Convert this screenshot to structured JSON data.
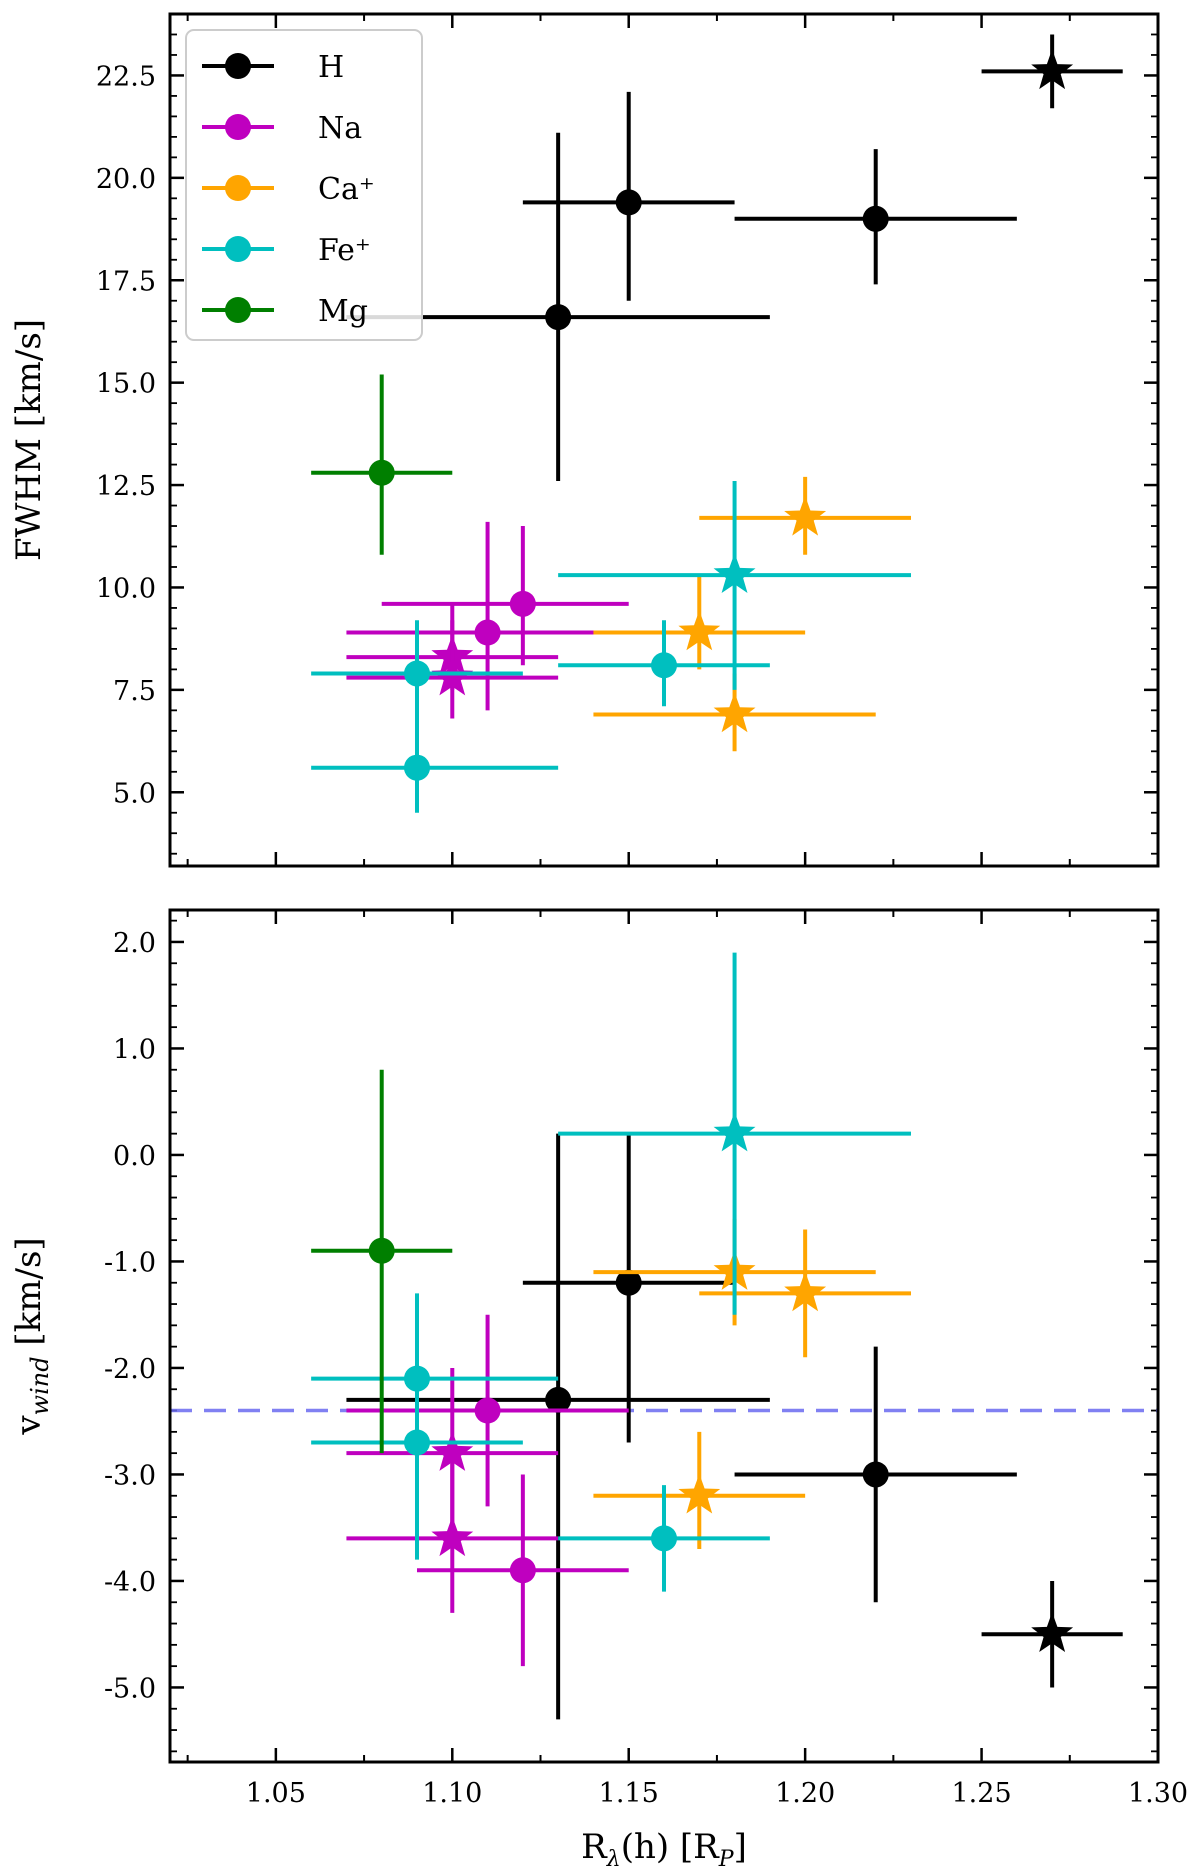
{
  "chart_data": {
    "type": "scatter",
    "xlabel": "R_λ(h) [R_P]",
    "x_ticks": [
      "1.05",
      "1.10",
      "1.15",
      "1.20",
      "1.25",
      "1.30"
    ],
    "x_tick_values": [
      1.05,
      1.1,
      1.15,
      1.2,
      1.25,
      1.3
    ],
    "xlim": [
      1.02,
      1.3
    ],
    "legend": {
      "placement": "top-left",
      "entries": [
        {
          "label": "H",
          "color": "#000000"
        },
        {
          "label": "Na",
          "color": "#bf00bf"
        },
        {
          "label": "Ca⁺",
          "color": "#ffa500"
        },
        {
          "label": "Fe⁺",
          "color": "#00bfbf"
        },
        {
          "label": "Mg",
          "color": "#007f00"
        }
      ]
    },
    "panels": [
      {
        "ylabel": "FWHM [km/s]",
        "ylim": [
          3.2,
          24.0
        ],
        "y_ticks": [
          "5.0",
          "7.5",
          "10.0",
          "12.5",
          "15.0",
          "17.5",
          "20.0",
          "22.5"
        ],
        "y_tick_values": [
          5.0,
          7.5,
          10.0,
          12.5,
          15.0,
          17.5,
          20.0,
          22.5
        ],
        "reference_line": null,
        "points": [
          {
            "species": "H",
            "marker": "circle",
            "x": 1.13,
            "xerr": [
              0.06,
              0.06
            ],
            "y": 16.6,
            "yerr": [
              4.0,
              4.5
            ]
          },
          {
            "species": "H",
            "marker": "circle",
            "x": 1.15,
            "xerr": [
              0.03,
              0.03
            ],
            "y": 19.4,
            "yerr": [
              2.4,
              2.7
            ]
          },
          {
            "species": "H",
            "marker": "circle",
            "x": 1.22,
            "xerr": [
              0.04,
              0.04
            ],
            "y": 19.0,
            "yerr": [
              1.6,
              1.7
            ]
          },
          {
            "species": "H",
            "marker": "star",
            "x": 1.27,
            "xerr": [
              0.02,
              0.02
            ],
            "y": 22.6,
            "yerr": [
              0.9,
              0.9
            ]
          },
          {
            "species": "Na",
            "marker": "circle",
            "x": 1.11,
            "xerr": [
              0.04,
              0.04
            ],
            "y": 8.9,
            "yerr": [
              1.9,
              2.7
            ]
          },
          {
            "species": "Na",
            "marker": "circle",
            "x": 1.12,
            "xerr": [
              0.04,
              0.03
            ],
            "y": 9.6,
            "yerr": [
              1.5,
              1.9
            ]
          },
          {
            "species": "Na",
            "marker": "star",
            "x": 1.1,
            "xerr": [
              0.03,
              0.03
            ],
            "y": 8.3,
            "yerr": [
              0.8,
              1.3
            ]
          },
          {
            "species": "Na",
            "marker": "star",
            "x": 1.1,
            "xerr": [
              0.03,
              0.03
            ],
            "y": 7.8,
            "yerr": [
              1.0,
              1.4
            ]
          },
          {
            "species": "Ca⁺",
            "marker": "star",
            "x": 1.17,
            "xerr": [
              0.03,
              0.03
            ],
            "y": 8.9,
            "yerr": [
              0.9,
              1.4
            ]
          },
          {
            "species": "Ca⁺",
            "marker": "star",
            "x": 1.18,
            "xerr": [
              0.04,
              0.04
            ],
            "y": 6.9,
            "yerr": [
              0.9,
              1.0
            ]
          },
          {
            "species": "Ca⁺",
            "marker": "star",
            "x": 1.2,
            "xerr": [
              0.03,
              0.03
            ],
            "y": 11.7,
            "yerr": [
              0.9,
              1.0
            ]
          },
          {
            "species": "Fe⁺",
            "marker": "circle",
            "x": 1.09,
            "xerr": [
              0.03,
              0.03
            ],
            "y": 7.9,
            "yerr": [
              1.3,
              1.3
            ]
          },
          {
            "species": "Fe⁺",
            "marker": "circle",
            "x": 1.09,
            "xerr": [
              0.03,
              0.04
            ],
            "y": 5.6,
            "yerr": [
              1.1,
              1.2
            ]
          },
          {
            "species": "Fe⁺",
            "marker": "circle",
            "x": 1.16,
            "xerr": [
              0.03,
              0.03
            ],
            "y": 8.1,
            "yerr": [
              1.0,
              1.1
            ]
          },
          {
            "species": "Fe⁺",
            "marker": "star",
            "x": 1.18,
            "xerr": [
              0.05,
              0.05
            ],
            "y": 10.3,
            "yerr": [
              2.8,
              2.3
            ]
          },
          {
            "species": "Mg",
            "marker": "circle",
            "x": 1.08,
            "xerr": [
              0.02,
              0.02
            ],
            "y": 12.8,
            "yerr": [
              2.0,
              2.4
            ]
          }
        ]
      },
      {
        "ylabel": "v_wind [km/s]",
        "ylim": [
          -5.7,
          2.3
        ],
        "y_ticks": [
          "2.0",
          "1.0",
          "0.0",
          "-1.0",
          "-2.0",
          "-3.0",
          "-4.0",
          "-5.0"
        ],
        "y_tick_values": [
          2.0,
          1.0,
          0.0,
          -1.0,
          -2.0,
          -3.0,
          -4.0,
          -5.0
        ],
        "reference_line": {
          "y": -2.4,
          "color": "#6b6bf0",
          "style": "dashed"
        },
        "points": [
          {
            "species": "H",
            "marker": "circle",
            "x": 1.13,
            "xerr": [
              0.06,
              0.06
            ],
            "y": -2.3,
            "yerr": [
              3.0,
              2.5
            ]
          },
          {
            "species": "H",
            "marker": "circle",
            "x": 1.15,
            "xerr": [
              0.03,
              0.03
            ],
            "y": -1.2,
            "yerr": [
              1.5,
              1.4
            ]
          },
          {
            "species": "H",
            "marker": "circle",
            "x": 1.22,
            "xerr": [
              0.04,
              0.04
            ],
            "y": -3.0,
            "yerr": [
              1.2,
              1.2
            ]
          },
          {
            "species": "H",
            "marker": "star",
            "x": 1.27,
            "xerr": [
              0.02,
              0.02
            ],
            "y": -4.5,
            "yerr": [
              0.5,
              0.5
            ]
          },
          {
            "species": "Na",
            "marker": "circle",
            "x": 1.11,
            "xerr": [
              0.04,
              0.04
            ],
            "y": -2.4,
            "yerr": [
              0.9,
              0.9
            ]
          },
          {
            "species": "Na",
            "marker": "circle",
            "x": 1.12,
            "xerr": [
              0.03,
              0.03
            ],
            "y": -3.9,
            "yerr": [
              0.9,
              0.9
            ]
          },
          {
            "species": "Na",
            "marker": "star",
            "x": 1.1,
            "xerr": [
              0.03,
              0.03
            ],
            "y": -2.8,
            "yerr": [
              0.8,
              0.8
            ]
          },
          {
            "species": "Na",
            "marker": "star",
            "x": 1.1,
            "xerr": [
              0.03,
              0.03
            ],
            "y": -3.6,
            "yerr": [
              0.7,
              0.7
            ]
          },
          {
            "species": "Ca⁺",
            "marker": "star",
            "x": 1.17,
            "xerr": [
              0.03,
              0.03
            ],
            "y": -3.2,
            "yerr": [
              0.5,
              0.6
            ]
          },
          {
            "species": "Ca⁺",
            "marker": "star",
            "x": 1.18,
            "xerr": [
              0.04,
              0.04
            ],
            "y": -1.1,
            "yerr": [
              0.5,
              0.5
            ]
          },
          {
            "species": "Ca⁺",
            "marker": "star",
            "x": 1.2,
            "xerr": [
              0.03,
              0.03
            ],
            "y": -1.3,
            "yerr": [
              0.6,
              0.6
            ]
          },
          {
            "species": "Fe⁺",
            "marker": "circle",
            "x": 1.09,
            "xerr": [
              0.03,
              0.04
            ],
            "y": -2.1,
            "yerr": [
              0.8,
              0.8
            ]
          },
          {
            "species": "Fe⁺",
            "marker": "circle",
            "x": 1.09,
            "xerr": [
              0.03,
              0.03
            ],
            "y": -2.7,
            "yerr": [
              1.1,
              1.1
            ]
          },
          {
            "species": "Fe⁺",
            "marker": "circle",
            "x": 1.16,
            "xerr": [
              0.03,
              0.03
            ],
            "y": -3.6,
            "yerr": [
              0.5,
              0.5
            ]
          },
          {
            "species": "Fe⁺",
            "marker": "star",
            "x": 1.18,
            "xerr": [
              0.05,
              0.05
            ],
            "y": 0.2,
            "yerr": [
              1.7,
              1.7
            ]
          },
          {
            "species": "Mg",
            "marker": "circle",
            "x": 1.08,
            "xerr": [
              0.02,
              0.02
            ],
            "y": -0.9,
            "yerr": [
              1.9,
              1.7
            ]
          }
        ]
      }
    ]
  }
}
